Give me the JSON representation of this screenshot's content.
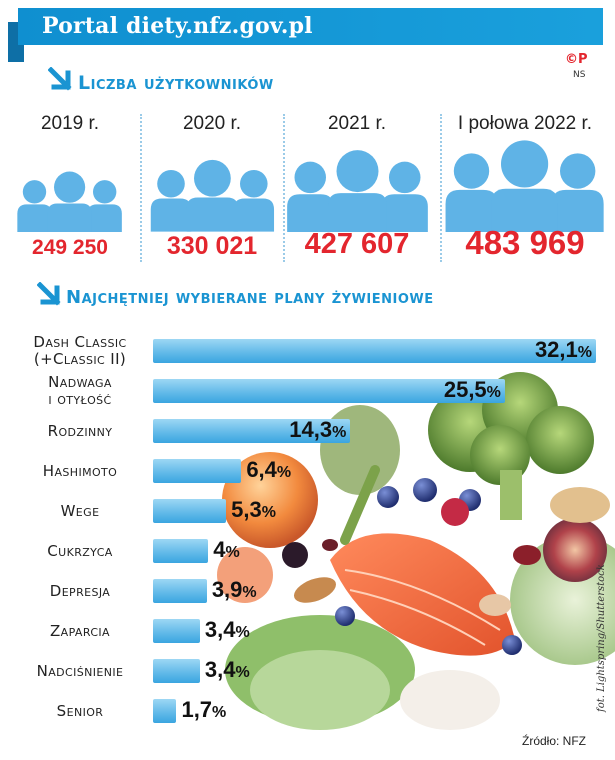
{
  "title": "Portal diety.nfz.gov.pl",
  "copyright_mark": "©P",
  "copyright_sub": "NS",
  "users_section": {
    "title": "Liczba użytkowników",
    "years": [
      "2019 r.",
      "2020 r.",
      "2021 r.",
      "I połowa 2022 r."
    ],
    "values": [
      "249 250",
      "330 021",
      "427 607",
      "483 969"
    ]
  },
  "plans_section": {
    "title": "Najchętniej wybierane plany żywieniowe"
  },
  "chart_data": [
    {
      "type": "pictograph",
      "title": "Liczba użytkowników",
      "categories": [
        "2019 r.",
        "2020 r.",
        "2021 r.",
        "I połowa 2022 r."
      ],
      "values": [
        249250,
        330021,
        427607,
        483969
      ]
    },
    {
      "type": "bar",
      "orientation": "horizontal",
      "title": "Najchętniej wybierane plany żywieniowe",
      "categories": [
        [
          "Dash Classic",
          "(+Classic II)"
        ],
        [
          "Nadwaga",
          "i otyłość"
        ],
        [
          "Rodzinny"
        ],
        [
          "Hashimoto"
        ],
        [
          "Wege"
        ],
        [
          "Cukrzyca"
        ],
        [
          "Depresja"
        ],
        [
          "Zaparcia"
        ],
        [
          "Nadciśnienie"
        ],
        [
          "Senior"
        ]
      ],
      "values": [
        32.1,
        25.5,
        14.3,
        6.4,
        5.3,
        4,
        3.9,
        3.4,
        3.4,
        1.7
      ],
      "value_labels": [
        "32,1",
        "25,5",
        "14,3",
        "6,4",
        "5,3",
        "4",
        "3,9",
        "3,4",
        "3,4",
        "1,7"
      ],
      "unit": "%",
      "xlim": [
        0,
        33
      ]
    }
  ],
  "source": "Źródło: NFZ",
  "photo_credit": "fot. Lightspring/Shutterstock",
  "colors": {
    "header": "#1aa0dc",
    "accent_red": "#e3262e",
    "bar": "#5fb8e8",
    "people": "#5fb3e6"
  }
}
